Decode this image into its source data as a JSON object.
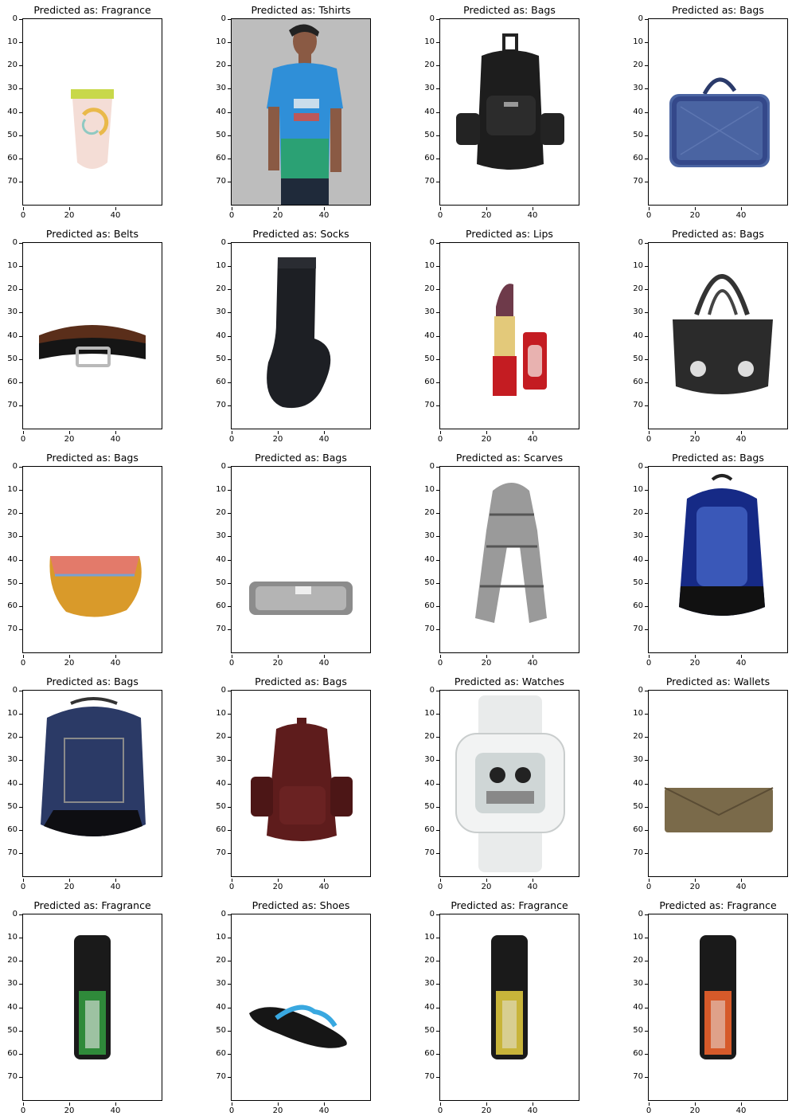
{
  "chart_data": {
    "type": "image_grid",
    "title_prefix": "Predicted as: ",
    "axes": {
      "x_ticks": [
        0,
        20,
        40
      ],
      "y_ticks": [
        0,
        10,
        20,
        30,
        40,
        50,
        60,
        70
      ],
      "xlim": [
        0,
        60
      ],
      "ylim": [
        80,
        0
      ]
    },
    "panels": [
      {
        "title": "Predicted as: Fragrance",
        "label": "Fragrance",
        "image": "fragrance-tube-icon"
      },
      {
        "title": "Predicted as: Tshirts",
        "label": "Tshirts",
        "image": "tshirt-model-icon"
      },
      {
        "title": "Predicted as: Bags",
        "label": "Bags",
        "image": "black-backpack-icon"
      },
      {
        "title": "Predicted as: Bags",
        "label": "Bags",
        "image": "blue-laptop-bag-icon"
      },
      {
        "title": "Predicted as: Belts",
        "label": "Belts",
        "image": "belt-icon"
      },
      {
        "title": "Predicted as: Socks",
        "label": "Socks",
        "image": "sock-icon"
      },
      {
        "title": "Predicted as: Lips",
        "label": "Lips",
        "image": "lipstick-icon"
      },
      {
        "title": "Predicted as: Bags",
        "label": "Bags",
        "image": "black-handbag-icon"
      },
      {
        "title": "Predicted as: Bags",
        "label": "Bags",
        "image": "yellow-sling-bag-icon"
      },
      {
        "title": "Predicted as: Bags",
        "label": "Bags",
        "image": "grey-roll-bag-icon"
      },
      {
        "title": "Predicted as: Scarves",
        "label": "Scarves",
        "image": "scarf-icon"
      },
      {
        "title": "Predicted as: Bags",
        "label": "Bags",
        "image": "blue-backpack-icon"
      },
      {
        "title": "Predicted as: Bags",
        "label": "Bags",
        "image": "navy-backpack-icon"
      },
      {
        "title": "Predicted as: Bags",
        "label": "Bags",
        "image": "maroon-backpack-icon"
      },
      {
        "title": "Predicted as: Watches",
        "label": "Watches",
        "image": "white-watch-icon"
      },
      {
        "title": "Predicted as: Wallets",
        "label": "Wallets",
        "image": "wallet-icon"
      },
      {
        "title": "Predicted as: Fragrance",
        "label": "Fragrance",
        "image": "green-deodorant-icon"
      },
      {
        "title": "Predicted as: Shoes",
        "label": "Shoes",
        "image": "flip-flop-icon"
      },
      {
        "title": "Predicted as: Fragrance",
        "label": "Fragrance",
        "image": "yellow-deodorant-icon"
      },
      {
        "title": "Predicted as: Fragrance",
        "label": "Fragrance",
        "image": "orange-deodorant-icon"
      }
    ]
  }
}
